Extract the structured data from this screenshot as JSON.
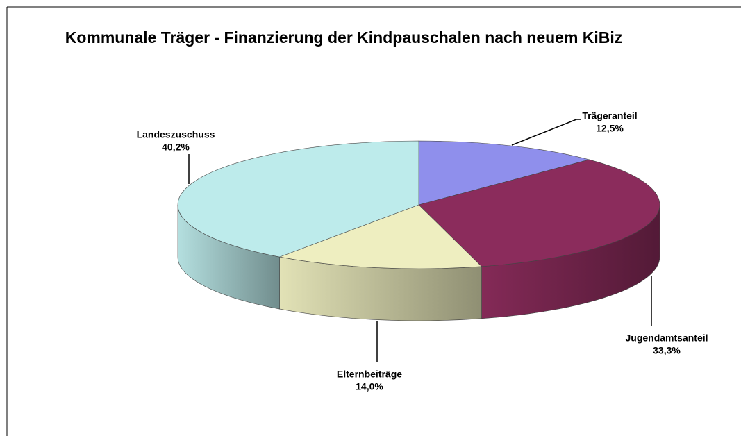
{
  "chart_data": {
    "type": "pie",
    "title": "Kommunale  Träger - Finanzierung der Kindpauschalen nach neuem KiBiz",
    "categories": [
      "Trägeranteil",
      "Jugendamtsanteil",
      "Elternbeiträge",
      "Landeszuschuss"
    ],
    "values": [
      12.5,
      33.3,
      14.0,
      40.2
    ],
    "value_labels": [
      "12,5%",
      "33,3%",
      "14,0%",
      "40,2%"
    ],
    "colors": [
      "#8f8fec",
      "#8b2c5c",
      "#eeeec0",
      "#bdebeb"
    ]
  }
}
